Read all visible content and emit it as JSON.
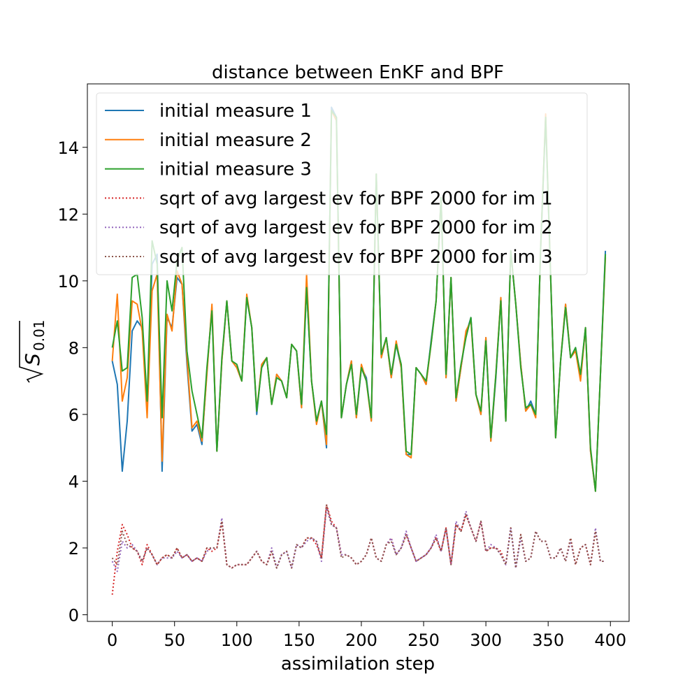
{
  "chart_data": {
    "type": "line",
    "title": "distance between EnKF and BPF",
    "xlabel": "assimilation step",
    "ylabel": {
      "base": "S",
      "sub": "0.01"
    },
    "xlim": [
      -20,
      415
    ],
    "ylim": [
      -0.2,
      15.9
    ],
    "xticks": [
      0,
      50,
      100,
      150,
      200,
      250,
      300,
      350,
      400
    ],
    "yticks": [
      0,
      2,
      4,
      6,
      8,
      10,
      12,
      14
    ],
    "grid": false,
    "legend_position": "upper-left",
    "x": [
      0,
      4,
      8,
      12,
      16,
      20,
      24,
      28,
      32,
      36,
      40,
      44,
      48,
      52,
      56,
      60,
      64,
      68,
      72,
      76,
      80,
      84,
      88,
      92,
      96,
      100,
      104,
      108,
      112,
      116,
      120,
      124,
      128,
      132,
      136,
      140,
      144,
      148,
      152,
      156,
      160,
      164,
      168,
      172,
      176,
      180,
      184,
      188,
      192,
      196,
      200,
      204,
      208,
      212,
      216,
      220,
      224,
      228,
      232,
      236,
      240,
      244,
      248,
      252,
      256,
      260,
      264,
      268,
      272,
      276,
      280,
      284,
      288,
      292,
      296,
      300,
      304,
      308,
      312,
      316,
      320,
      324,
      328,
      332,
      336,
      340,
      344,
      348,
      352,
      356,
      360,
      364,
      368,
      372,
      376,
      380,
      384,
      388,
      392,
      396
    ],
    "series": [
      {
        "name": "initial measure 1",
        "style": "solid",
        "color": "#1f77b4",
        "values": [
          7.6,
          6.9,
          4.3,
          5.8,
          8.5,
          8.8,
          8.6,
          6.2,
          10.5,
          10.8,
          4.3,
          8.9,
          8.6,
          10.1,
          9.9,
          7.5,
          5.5,
          5.7,
          5.1,
          7.3,
          9.2,
          4.9,
          7.6,
          9.4,
          7.6,
          7.4,
          7.0,
          9.5,
          8.6,
          6.0,
          7.5,
          7.7,
          6.3,
          7.2,
          7.0,
          6.5,
          8.1,
          7.9,
          6.2,
          9.8,
          7.0,
          5.8,
          6.4,
          5.0,
          15.2,
          14.9,
          5.9,
          6.9,
          7.6,
          5.9,
          7.4,
          7.1,
          5.8,
          13.2,
          7.7,
          8.3,
          7.1,
          8.1,
          7.4,
          4.8,
          4.8,
          7.4,
          7.2,
          6.9,
          8.2,
          9.4,
          12.5,
          7.1,
          10.1,
          6.4,
          7.4,
          8.4,
          8.9,
          6.6,
          6.0,
          8.3,
          5.2,
          7.1,
          9.5,
          5.8,
          10.9,
          9.3,
          7.5,
          6.1,
          6.4,
          6.0,
          11.0,
          14.9,
          10.1,
          5.3,
          7.6,
          9.3,
          7.7,
          8.0,
          7.1,
          8.6,
          4.9,
          3.7,
          7.2,
          10.9
        ]
      },
      {
        "name": "initial measure 2",
        "style": "solid",
        "color": "#ff7f0e",
        "values": [
          7.6,
          9.6,
          6.4,
          7.1,
          9.4,
          9.3,
          8.5,
          5.9,
          9.7,
          10.2,
          4.6,
          9.0,
          8.5,
          10.3,
          9.9,
          7.7,
          5.6,
          5.8,
          5.2,
          7.2,
          9.3,
          4.9,
          7.6,
          9.4,
          7.6,
          7.4,
          7.0,
          9.6,
          8.6,
          6.1,
          7.5,
          7.7,
          6.3,
          7.2,
          7.0,
          6.5,
          8.1,
          7.9,
          6.2,
          10.2,
          7.0,
          5.7,
          6.4,
          5.1,
          15.1,
          14.8,
          5.9,
          6.9,
          7.6,
          5.9,
          7.5,
          7.0,
          5.8,
          13.2,
          7.7,
          8.3,
          7.1,
          8.2,
          7.4,
          4.8,
          4.7,
          7.4,
          7.2,
          6.9,
          8.1,
          9.4,
          12.5,
          7.1,
          10.1,
          6.4,
          7.4,
          8.5,
          8.8,
          6.6,
          6.0,
          8.3,
          5.2,
          7.2,
          9.5,
          5.8,
          10.9,
          9.3,
          7.5,
          6.1,
          6.3,
          5.9,
          11.0,
          15.0,
          10.1,
          5.3,
          7.6,
          9.3,
          7.7,
          7.9,
          7.0,
          8.6,
          4.9,
          3.7,
          7.2,
          10.7
        ]
      },
      {
        "name": "initial measure 3",
        "style": "solid",
        "color": "#2ca02c",
        "values": [
          8.0,
          8.8,
          7.3,
          7.4,
          10.1,
          10.2,
          8.9,
          6.4,
          11.2,
          10.5,
          5.9,
          10.0,
          9.1,
          10.6,
          11.0,
          7.9,
          6.7,
          6.0,
          5.3,
          7.4,
          9.1,
          4.9,
          7.7,
          9.4,
          7.6,
          7.5,
          7.0,
          9.5,
          8.6,
          6.1,
          7.4,
          7.7,
          6.3,
          7.1,
          7.0,
          6.5,
          8.1,
          7.9,
          6.3,
          9.8,
          7.0,
          5.8,
          6.4,
          5.4,
          15.1,
          14.9,
          5.9,
          6.9,
          7.5,
          6.0,
          7.4,
          7.0,
          5.9,
          13.2,
          7.8,
          8.3,
          7.2,
          8.1,
          7.5,
          4.9,
          4.8,
          7.4,
          7.2,
          7.0,
          8.1,
          9.4,
          12.5,
          7.2,
          10.1,
          6.5,
          7.5,
          8.3,
          8.9,
          6.6,
          6.1,
          8.2,
          5.3,
          7.2,
          9.4,
          5.8,
          10.9,
          9.3,
          7.4,
          6.2,
          6.3,
          6.0,
          11.0,
          14.9,
          10.1,
          5.3,
          7.6,
          9.2,
          7.7,
          8.0,
          7.2,
          8.6,
          5.0,
          3.7,
          7.2,
          10.8
        ]
      },
      {
        "name": "sqrt of avg largest ev for BPF 2000 for im 1",
        "style": "dotted",
        "color": "#d62728",
        "values": [
          0.6,
          1.9,
          2.7,
          2.4,
          2.0,
          1.9,
          1.5,
          2.1,
          1.8,
          1.5,
          1.7,
          1.8,
          1.7,
          2.0,
          1.7,
          1.8,
          1.6,
          1.7,
          1.6,
          2.0,
          1.9,
          2.0,
          2.8,
          1.5,
          1.4,
          1.5,
          1.5,
          1.5,
          1.7,
          1.9,
          1.6,
          1.5,
          1.9,
          1.4,
          1.8,
          1.9,
          1.4,
          2.1,
          2.0,
          2.3,
          2.3,
          2.1,
          1.7,
          3.3,
          2.8,
          2.6,
          1.8,
          1.8,
          1.7,
          1.5,
          1.6,
          1.8,
          2.3,
          1.7,
          1.6,
          2.1,
          2.3,
          1.8,
          2.0,
          2.4,
          2.0,
          1.6,
          1.7,
          1.8,
          2.0,
          2.3,
          1.9,
          2.6,
          1.5,
          2.7,
          2.5,
          3.0,
          2.6,
          2.2,
          2.8,
          1.9,
          2.0,
          2.0,
          1.9,
          1.5,
          2.6,
          1.4,
          2.4,
          1.6,
          1.7,
          2.5,
          2.2,
          2.2,
          1.7,
          1.7,
          2.0,
          1.6,
          2.3,
          1.5,
          2.0,
          2.1,
          1.5,
          2.5,
          1.6,
          1.6
        ]
      },
      {
        "name": "sqrt of avg largest ev for BPF 2000 for im 2",
        "style": "dotted",
        "color": "#9467bd",
        "values": [
          1.6,
          1.3,
          2.2,
          2.0,
          2.1,
          1.9,
          1.6,
          2.0,
          1.8,
          1.5,
          1.7,
          1.7,
          1.7,
          1.9,
          1.7,
          1.8,
          1.6,
          1.7,
          1.6,
          1.9,
          2.0,
          2.0,
          2.9,
          1.5,
          1.4,
          1.5,
          1.5,
          1.5,
          1.7,
          1.9,
          1.6,
          1.5,
          2.0,
          1.4,
          1.8,
          1.9,
          1.4,
          2.1,
          2.0,
          2.2,
          2.3,
          2.2,
          1.6,
          3.2,
          2.7,
          2.6,
          1.8,
          1.8,
          1.7,
          1.5,
          1.6,
          1.8,
          2.3,
          1.7,
          1.6,
          2.1,
          2.3,
          1.8,
          2.0,
          2.5,
          2.0,
          1.6,
          1.7,
          1.8,
          2.0,
          2.4,
          1.9,
          2.6,
          1.5,
          2.8,
          2.5,
          3.1,
          2.6,
          2.2,
          2.8,
          1.9,
          2.1,
          2.0,
          1.8,
          1.5,
          2.6,
          1.4,
          2.3,
          1.6,
          1.7,
          2.5,
          2.2,
          2.2,
          1.7,
          1.7,
          2.0,
          1.6,
          2.2,
          1.5,
          2.0,
          2.1,
          1.5,
          2.6,
          1.6,
          1.6
        ]
      },
      {
        "name": "sqrt of avg largest ev for BPF 2000 for im 3",
        "style": "dotted",
        "color": "#8c564b",
        "values": [
          1.7,
          1.5,
          2.5,
          2.1,
          2.0,
          1.9,
          1.6,
          2.0,
          1.8,
          1.5,
          1.7,
          1.8,
          1.7,
          2.0,
          1.7,
          1.8,
          1.6,
          1.7,
          1.6,
          2.0,
          2.0,
          2.0,
          2.8,
          1.5,
          1.4,
          1.5,
          1.5,
          1.5,
          1.7,
          1.9,
          1.6,
          1.5,
          1.9,
          1.4,
          1.8,
          1.9,
          1.4,
          2.1,
          2.0,
          2.3,
          2.3,
          2.2,
          1.7,
          3.3,
          2.7,
          2.6,
          1.7,
          1.8,
          1.7,
          1.5,
          1.6,
          1.8,
          2.3,
          1.7,
          1.6,
          2.1,
          2.2,
          1.8,
          2.0,
          2.4,
          2.0,
          1.6,
          1.7,
          1.8,
          2.0,
          2.3,
          1.9,
          2.6,
          1.5,
          2.7,
          2.5,
          3.0,
          2.6,
          2.2,
          2.8,
          1.9,
          2.0,
          2.0,
          1.8,
          1.5,
          2.6,
          1.4,
          2.4,
          1.6,
          1.7,
          2.5,
          2.2,
          2.2,
          1.7,
          1.7,
          2.0,
          1.6,
          2.3,
          1.5,
          2.0,
          2.1,
          1.5,
          2.5,
          1.6,
          1.6
        ]
      }
    ]
  }
}
